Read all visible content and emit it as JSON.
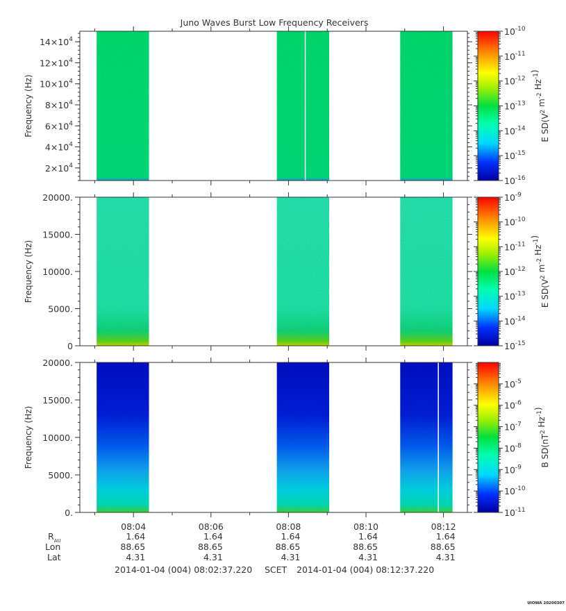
{
  "title": "Juno Waves Burst Low Frequency Receivers",
  "colors": {
    "background": "#ffffff",
    "axis": "#333333",
    "gap_line": "#ffffff"
  },
  "chart_data": [
    {
      "type": "heatmap",
      "panel": "top",
      "ylabel": "Frequency (Hz)",
      "yticks": [
        "2×10^4",
        "4×10^4",
        "6×10^4",
        "8×10^4",
        "10×10^4",
        "12×10^4",
        "14×10^4"
      ],
      "ytick_values": [
        20000,
        40000,
        60000,
        80000,
        100000,
        120000,
        140000
      ],
      "ylim": [
        8000,
        150000
      ],
      "xlim": [
        "08:02:37",
        "08:12:37"
      ],
      "zlabel": "E SD(V^2 m^-2 Hz^-1)",
      "zlim_log10": [
        -16,
        -10
      ],
      "colorbar_ticks_log10": [
        -16,
        -15,
        -14,
        -13,
        -12,
        -11,
        -10
      ],
      "intervals": [
        {
          "start": "08:03:03",
          "end": "08:04:24"
        },
        {
          "start": "08:07:42",
          "end": "08:09:03"
        },
        {
          "start": "08:10:53",
          "end": "08:12:14"
        }
      ],
      "gap_lines": [
        "08:08:26"
      ],
      "level_log10": -13.5
    },
    {
      "type": "heatmap",
      "panel": "middle",
      "ylabel": "Frequency (Hz)",
      "yticks": [
        "0",
        "5000.",
        "10000.",
        "15000.",
        "20000."
      ],
      "ytick_values": [
        0,
        5000,
        10000,
        15000,
        20000
      ],
      "ylim": [
        0,
        20000
      ],
      "xlim": [
        "08:02:37",
        "08:12:37"
      ],
      "zlabel": "E SD(V^2 m^-2 Hz^-1)",
      "zlim_log10": [
        -15,
        -9
      ],
      "colorbar_ticks_log10": [
        -15,
        -14,
        -13,
        -12,
        -11,
        -10,
        -9
      ],
      "intervals": [
        {
          "start": "08:03:03",
          "end": "08:04:24"
        },
        {
          "start": "08:07:42",
          "end": "08:09:03"
        },
        {
          "start": "08:10:53",
          "end": "08:12:14"
        }
      ],
      "gap_lines": [],
      "level_log10": -13
    },
    {
      "type": "heatmap",
      "panel": "bottom",
      "ylabel": "Frequency (Hz)",
      "yticks": [
        "0.",
        "5000.",
        "10000.",
        "15000.",
        "20000."
      ],
      "ytick_values": [
        0,
        5000,
        10000,
        15000,
        20000
      ],
      "ylim": [
        0,
        20000
      ],
      "xlim": [
        "08:02:37",
        "08:12:37"
      ],
      "zlabel": "B SD(nT^2 Hz^-1)",
      "zlim_log10": [
        -11,
        -4
      ],
      "colorbar_ticks_log10": [
        -11,
        -10,
        -9,
        -8,
        -7,
        -6,
        -5
      ],
      "intervals": [
        {
          "start": "08:03:03",
          "end": "08:04:24"
        },
        {
          "start": "08:07:42",
          "end": "08:09:03"
        },
        {
          "start": "08:10:53",
          "end": "08:12:14"
        }
      ],
      "gap_lines": [
        "08:11:52"
      ],
      "level_log10": -10
    }
  ],
  "xaxis": {
    "tick_labels": [
      "08:04",
      "08:06",
      "08:08",
      "08:10",
      "08:12"
    ],
    "tick_times": [
      "08:04:00",
      "08:06:00",
      "08:08:00",
      "08:10:00",
      "08:12:00"
    ]
  },
  "ephemeris": {
    "rows": [
      {
        "label": "R",
        "sub": "AU",
        "values": [
          "1.64",
          "1.64",
          "1.64",
          "1.64",
          "1.64"
        ]
      },
      {
        "label": "Lon",
        "sub": "",
        "values": [
          "88.65",
          "88.65",
          "88.65",
          "88.65",
          "88.65"
        ]
      },
      {
        "label": "Lat",
        "sub": "",
        "values": [
          "4.31",
          "4.31",
          "4.31",
          "4.31",
          "4.31"
        ]
      }
    ]
  },
  "footer": {
    "start": "2014-01-04 (004) 08:02:37.220",
    "mid": "SCET",
    "end": "2014-01-04 (004) 08:12:37.220"
  },
  "stamp": "UIOWA 20200307"
}
